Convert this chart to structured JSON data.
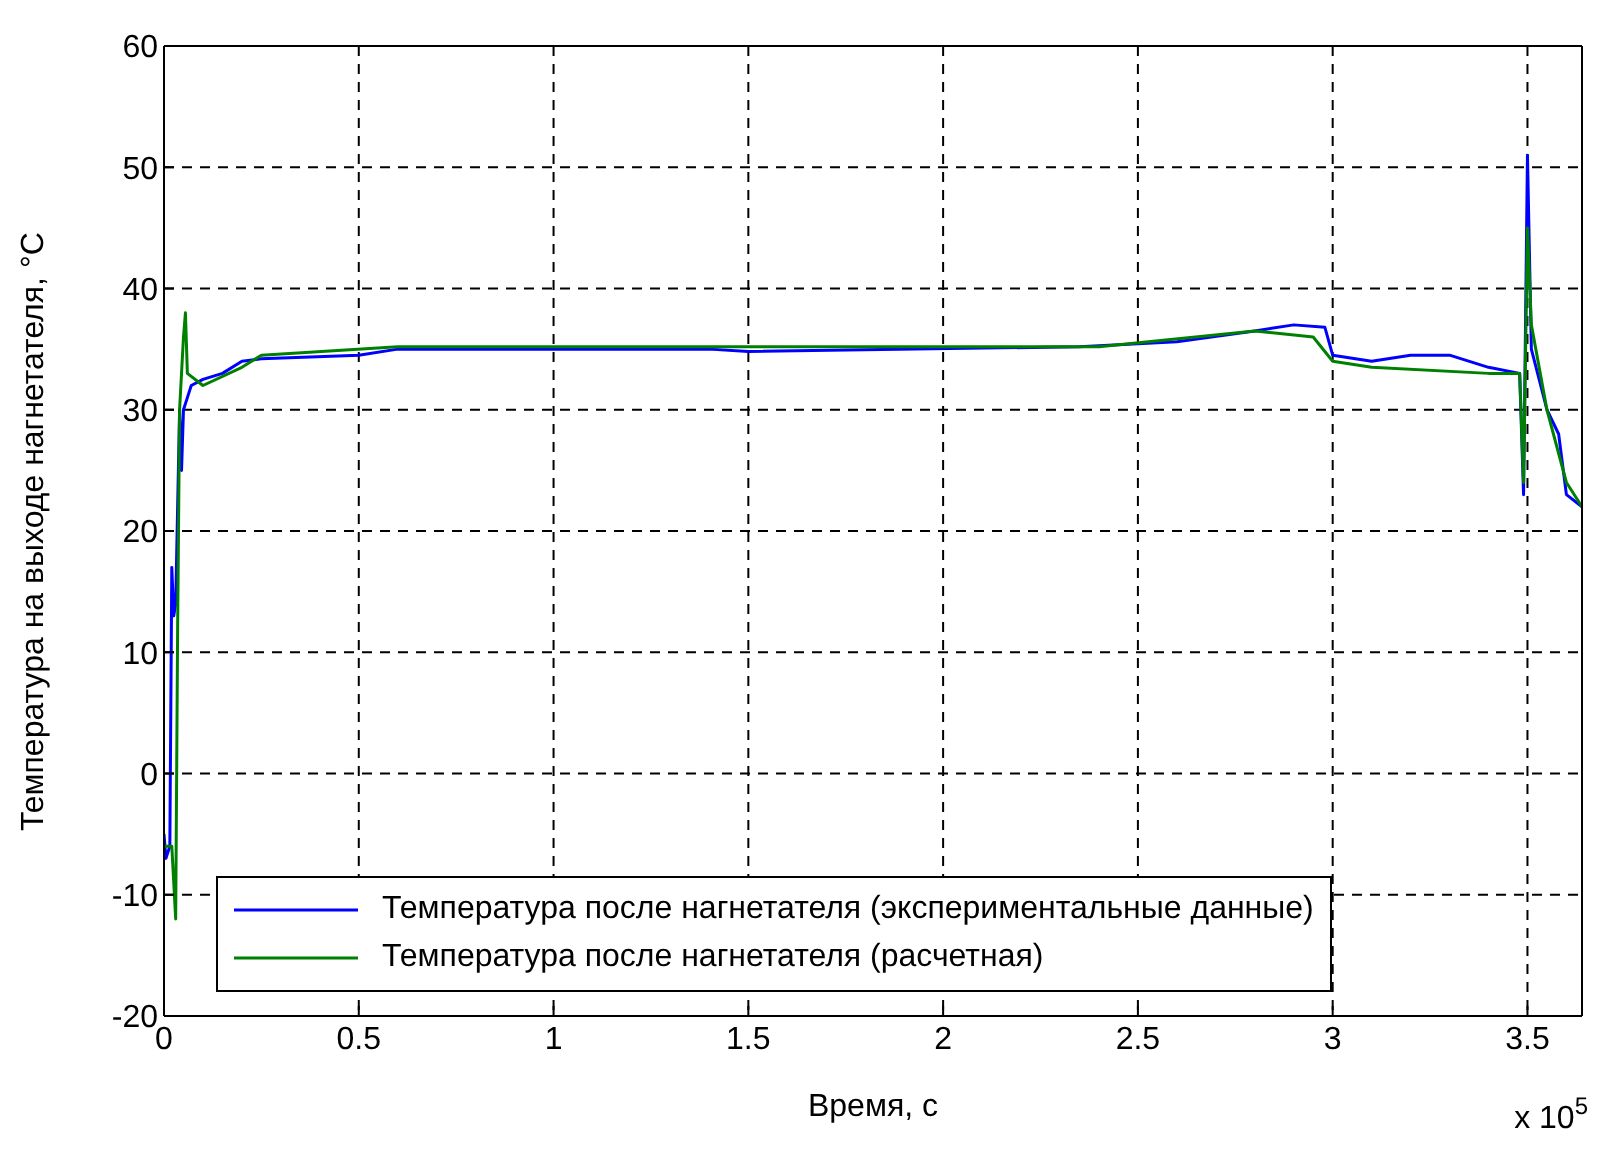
{
  "chart_data": {
    "type": "line",
    "xlabel": "Время, с",
    "ylabel": "Температура на выходе нагнетателя, °С",
    "annotations": [
      "x 10$^{5}$"
    ],
    "xlim": [
      0,
      3.64
    ],
    "xticks": [
      0,
      0.5,
      1,
      1.5,
      2,
      2.5,
      3,
      3.5
    ],
    "ylim": [
      -20,
      60
    ],
    "yticks": [
      -20,
      -10,
      0,
      10,
      20,
      30,
      40,
      50,
      60
    ],
    "grid": true,
    "legend": "bottom",
    "marker": "none",
    "line_style": "solid",
    "series": [
      {
        "name": "Температура после нагнетателя (экспериментальные данные)",
        "color": "#0000ff",
        "x": [
          0,
          0.005,
          0.015,
          0.02,
          0.025,
          0.03,
          0.035,
          0.04,
          0.045,
          0.05,
          0.06,
          0.07,
          0.1,
          0.15,
          0.2,
          0.25,
          0.5,
          0.6,
          1.4,
          1.5,
          2.35,
          2.6,
          2.8,
          2.9,
          2.98,
          3.0,
          3.1,
          3.2,
          3.3,
          3.4,
          3.48,
          3.49,
          3.5,
          3.51,
          3.55,
          3.58,
          3.6,
          3.64
        ],
        "values": [
          -5,
          -7,
          -6,
          17,
          13,
          14,
          22,
          30,
          25,
          30,
          31,
          32,
          32.5,
          33,
          34,
          34.2,
          34.5,
          35,
          35,
          34.8,
          35.2,
          35.6,
          36.5,
          37,
          36.8,
          34.5,
          34,
          34.5,
          34.5,
          33.5,
          33,
          23,
          51,
          35,
          30,
          28,
          23,
          22
        ]
      },
      {
        "name": "Температура  после нагнетателя (расчетная)",
        "color": "#008000",
        "x": [
          0,
          0.02,
          0.03,
          0.035,
          0.04,
          0.05,
          0.055,
          0.06,
          0.1,
          0.2,
          0.25,
          0.6,
          1.5,
          2.4,
          2.8,
          2.95,
          3.0,
          3.1,
          3.4,
          3.48,
          3.49,
          3.5,
          3.51,
          3.55,
          3.6,
          3.64
        ],
        "values": [
          -6,
          -6,
          -12,
          12,
          30,
          36,
          38,
          33,
          32,
          33.5,
          34.5,
          35.2,
          35.2,
          35.2,
          36.5,
          36,
          34,
          33.5,
          33,
          33,
          24,
          45,
          37,
          30,
          24,
          22
        ]
      }
    ]
  }
}
